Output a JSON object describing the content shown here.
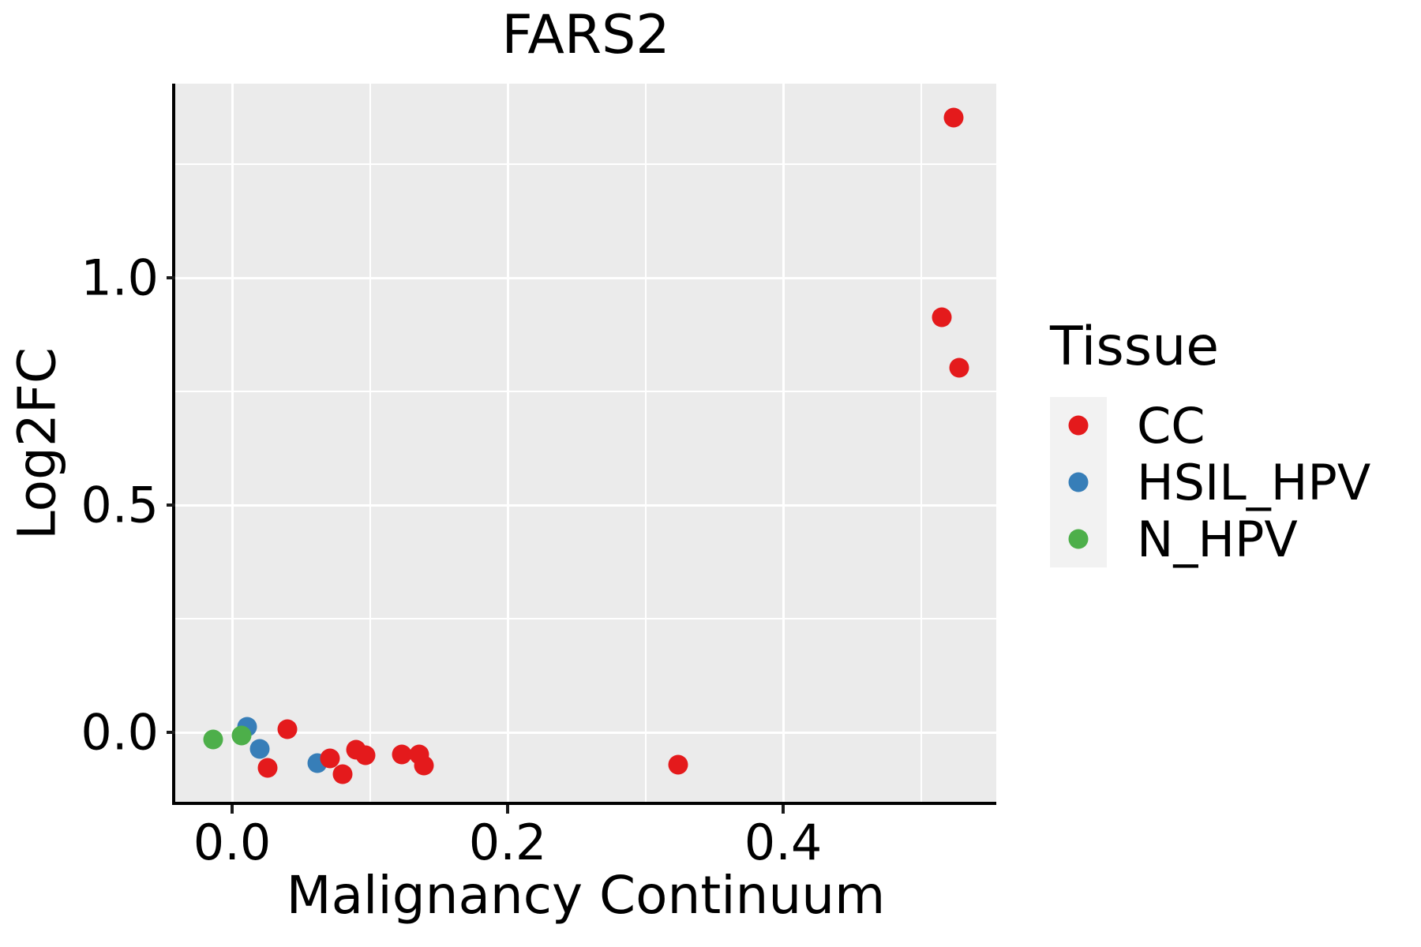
{
  "title": "FARS2",
  "axes": {
    "x": {
      "label": "Malignancy Continuum"
    },
    "y": {
      "label": "Log2FC"
    }
  },
  "legend": {
    "title": "Tissue",
    "entries": [
      {
        "label": "CC",
        "color": "#E41A1C"
      },
      {
        "label": "HSIL_HPV",
        "color": "#377EB8"
      },
      {
        "label": "N_HPV",
        "color": "#4DAF4A"
      }
    ]
  },
  "colors": {
    "panel_background": "#EBEBEB",
    "gridline": "#FFFFFF",
    "axis_line": "#000000",
    "legend_key_background": "#F2F2F2",
    "cc_red": "#E41A1C",
    "hsil_hpv_blue": "#377EB8",
    "n_hpv_green": "#4DAF4A"
  },
  "chart_data": {
    "type": "scatter",
    "title": "FARS2",
    "xlabel": "Malignancy Continuum",
    "ylabel": "Log2FC",
    "xlim": [
      -0.0413,
      0.5547
    ],
    "ylim": [
      -0.1562,
      1.4271
    ],
    "grid": true,
    "legend_position": "right",
    "x_ticks": [
      {
        "v": 0.0,
        "label": "0.0"
      },
      {
        "v": 0.2,
        "label": "0.2"
      },
      {
        "v": 0.4,
        "label": "0.4"
      }
    ],
    "x_minor_ticks": [
      0.1,
      0.3,
      0.5
    ],
    "y_ticks": [
      {
        "v": 0.0,
        "label": "0.0"
      },
      {
        "v": 0.5,
        "label": "0.5"
      },
      {
        "v": 1.0,
        "label": "1.0"
      }
    ],
    "y_minor_ticks": [
      0.25,
      0.75,
      1.25
    ],
    "marker_diameter_px": 25,
    "series": [
      {
        "name": "CC",
        "color": "#E41A1C",
        "points": [
          [
            0.026,
            -0.078
          ],
          [
            0.04,
            0.007
          ],
          [
            0.071,
            -0.057
          ],
          [
            0.08,
            -0.092
          ],
          [
            0.09,
            -0.038
          ],
          [
            0.097,
            -0.05
          ],
          [
            0.123,
            -0.049
          ],
          [
            0.136,
            -0.049
          ],
          [
            0.139,
            -0.073
          ],
          [
            0.324,
            -0.071
          ],
          [
            0.515,
            0.913
          ],
          [
            0.528,
            0.802
          ],
          [
            0.524,
            1.353
          ]
        ]
      },
      {
        "name": "HSIL_HPV",
        "color": "#377EB8",
        "points": [
          [
            0.011,
            0.012
          ],
          [
            0.02,
            -0.036
          ],
          [
            0.062,
            -0.068
          ]
        ]
      },
      {
        "name": "N_HPV",
        "color": "#4DAF4A",
        "points": [
          [
            -0.014,
            -0.016
          ],
          [
            0.007,
            -0.007
          ]
        ]
      }
    ],
    "draw_order": [
      "HSIL_HPV",
      "CC",
      "N_HPV"
    ]
  }
}
